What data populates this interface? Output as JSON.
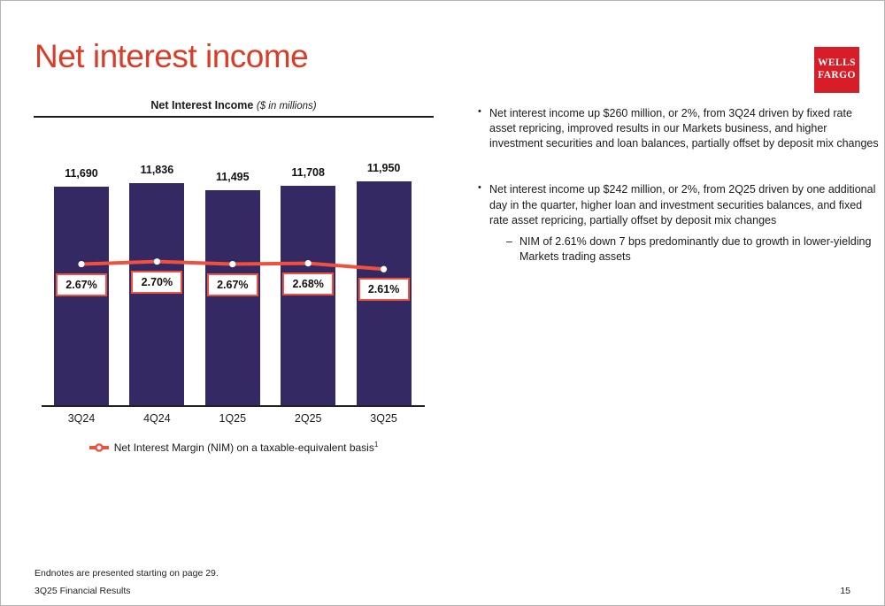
{
  "header": {
    "title": "Net interest income",
    "logo": {
      "line1": "WELLS",
      "line2": "FARGO"
    }
  },
  "chart": {
    "title": "Net Interest Income",
    "subtitle": "($ in millions)",
    "legend_label": "Net Interest Margin (NIM) on a taxable-equivalent basis",
    "legend_superscript": "1"
  },
  "chart_data": {
    "type": "bar",
    "title": "Net Interest Income ($ in millions)",
    "categories": [
      "3Q24",
      "4Q24",
      "1Q25",
      "2Q25",
      "3Q25"
    ],
    "series": [
      {
        "name": "Net interest income ($ in millions)",
        "type": "bar",
        "values": [
          11690,
          11836,
          11495,
          11708,
          11950
        ],
        "labels": [
          "11,690",
          "11,836",
          "11,495",
          "11,708",
          "11,950"
        ]
      },
      {
        "name": "Net Interest Margin (NIM) on a taxable-equivalent basis",
        "type": "line",
        "values": [
          2.67,
          2.7,
          2.67,
          2.68,
          2.61
        ],
        "labels": [
          "2.67%",
          "2.70%",
          "2.67%",
          "2.68%",
          "2.61%"
        ]
      }
    ],
    "ylim": [
      0,
      12000
    ],
    "y2lim": [
      2.5,
      2.9
    ],
    "grid": false,
    "legend_position": "bottom"
  },
  "commentary": {
    "bullets": [
      {
        "text": "Net interest income up $260 million, or 2%, from 3Q24 driven by fixed rate asset repricing, improved results in our Markets business, and higher investment securities and loan balances, partially offset by deposit mix changes",
        "subs": []
      },
      {
        "text": "Net interest income up $242 million, or 2%, from 2Q25 driven by one additional day in the quarter, higher loan and investment securities balances, and fixed rate asset repricing, partially offset by deposit mix changes",
        "subs": [
          "NIM of 2.61% down 7 bps predominantly due to growth in lower-yielding Markets trading assets"
        ]
      }
    ]
  },
  "footer": {
    "endnote": "Endnotes are presented starting on page 29.",
    "left": "3Q25 Financial Results",
    "page_number": "15"
  },
  "colors": {
    "title_red": "#da3c26",
    "brand_red": "#d71e28",
    "bar_navy": "#352963",
    "line_red": "#f0513f",
    "text": "#1a1a1a"
  }
}
